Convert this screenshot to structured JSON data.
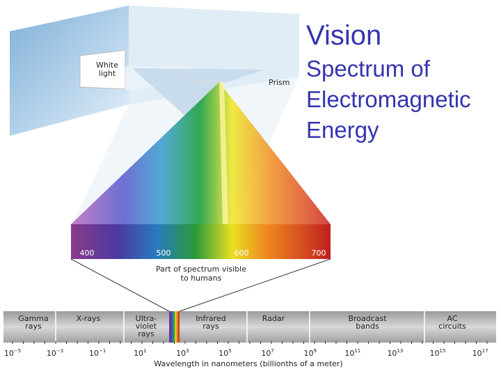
{
  "slide": {
    "title": "Vision",
    "subtitle_lines": [
      "Spectrum of",
      "Electromagnetic",
      "Energy"
    ],
    "diagram": {
      "white_light": [
        "White",
        "light"
      ],
      "prism": "Prism",
      "visible_ticks": [
        "400",
        "500",
        "600",
        "700"
      ],
      "visible_caption": [
        "Part of spectrum visible",
        "to humans"
      ],
      "bands": [
        [
          "Gamma",
          "rays"
        ],
        [
          "X-rays"
        ],
        [
          "Ultra-",
          "violet",
          "rays"
        ],
        [
          "Infrared",
          "rays"
        ],
        [
          "Radar"
        ],
        [
          "Broadcast",
          "bands"
        ],
        [
          "AC",
          "circuits"
        ]
      ],
      "wavelength_ticks": [
        {
          "base": "10",
          "exponent": "−5"
        },
        {
          "base": "10",
          "exponent": "−3"
        },
        {
          "base": "10",
          "exponent": "−1"
        },
        {
          "base": "10",
          "exponent": "1"
        },
        {
          "base": "10",
          "exponent": "3"
        },
        {
          "base": "10",
          "exponent": "5"
        },
        {
          "base": "10",
          "exponent": "7"
        },
        {
          "base": "10",
          "exponent": "9"
        },
        {
          "base": "10",
          "exponent": "11"
        },
        {
          "base": "10",
          "exponent": "13"
        },
        {
          "base": "10",
          "exponent": "15"
        },
        {
          "base": "10",
          "exponent": "17"
        }
      ],
      "axis_label": "Wavelength in nanometers (billionths of a meter)"
    }
  }
}
